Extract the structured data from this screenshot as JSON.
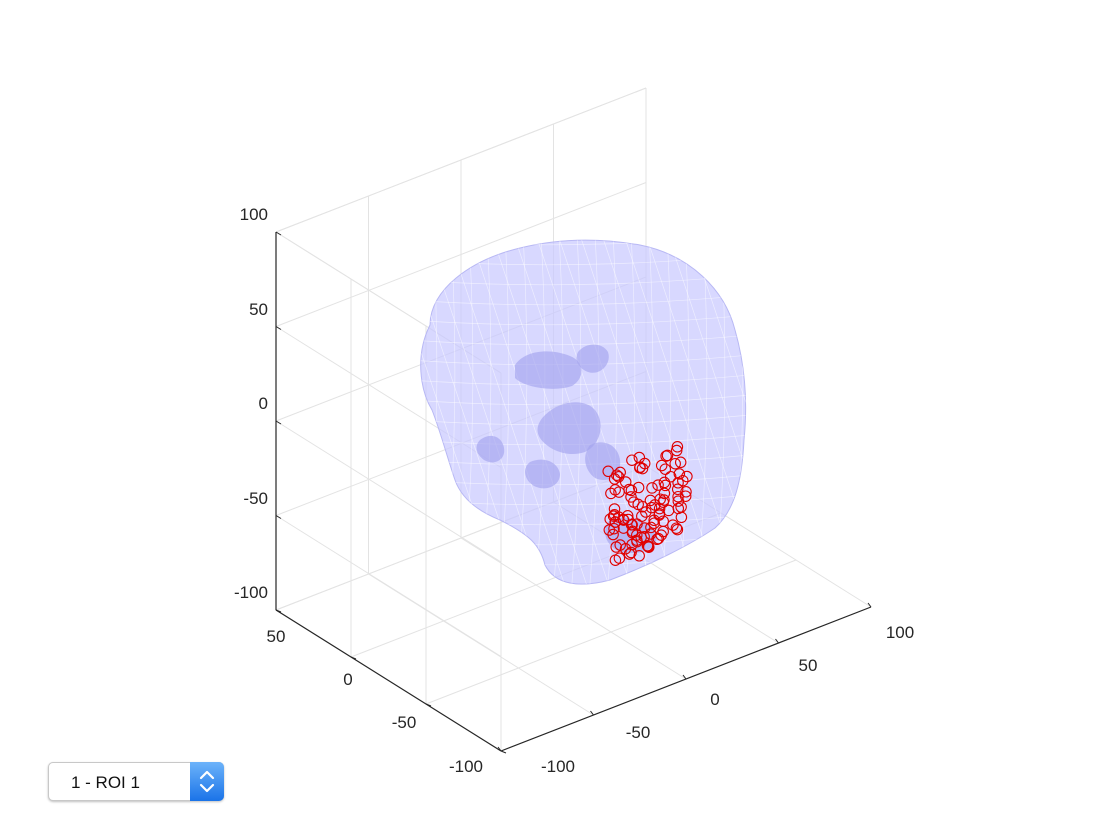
{
  "chart_data": {
    "type": "scatter",
    "title": "",
    "xlabel": "",
    "ylabel": "",
    "zlabel": "",
    "xlim": [
      -100,
      100
    ],
    "ylim": [
      -100,
      50
    ],
    "zlim": [
      -100,
      100
    ],
    "x_ticks": [
      "-100",
      "-50",
      "0",
      "50",
      "100"
    ],
    "y_ticks": [
      "-100",
      "-50",
      "0",
      "50"
    ],
    "z_ticks": [
      "-100",
      "-50",
      "0",
      "50",
      "100"
    ],
    "grid": true,
    "view": "3d",
    "surface": {
      "name": "brain mesh",
      "color": "#c8c8ff",
      "alpha": 0.7
    },
    "marker": {
      "shape": "circle",
      "color": "#e00000",
      "filled": false
    },
    "points": {
      "region": "left-posterior",
      "approx_count": 110,
      "x_range": [
        -25,
        15
      ],
      "y_range": [
        -95,
        -65
      ],
      "z_range": [
        -40,
        10
      ]
    }
  },
  "roi_selector": {
    "selected": "1 - ROI 1",
    "icon": "chevron-up-down-icon"
  }
}
